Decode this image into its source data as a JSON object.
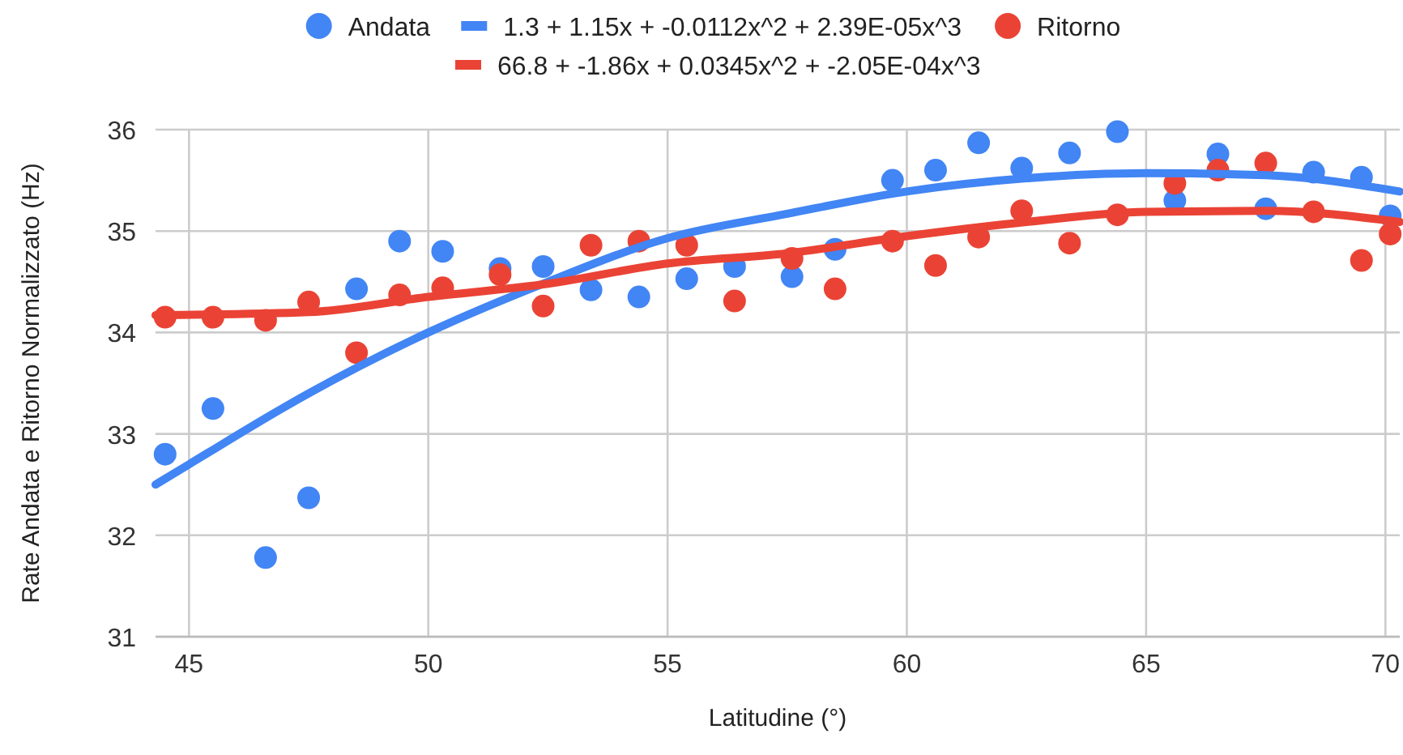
{
  "chart_data": {
    "type": "scatter",
    "xlabel": "Latitudine (°)",
    "ylabel": "Rate Andata e Ritorno Normalizzato (Hz)",
    "xlim": [
      44.3,
      70.3
    ],
    "ylim": [
      31,
      36
    ],
    "xticks": [
      45,
      50,
      55,
      60,
      65,
      70
    ],
    "yticks": [
      31,
      32,
      33,
      34,
      35,
      36
    ],
    "grid": true,
    "legend": "top",
    "marker": "circle",
    "x": [
      44.5,
      45.5,
      46.6,
      47.5,
      48.5,
      49.4,
      50.3,
      51.5,
      52.4,
      53.4,
      54.4,
      55.4,
      56.4,
      57.6,
      58.5,
      59.7,
      60.6,
      61.5,
      62.4,
      63.4,
      64.4,
      65.6,
      66.5,
      67.5,
      68.5,
      69.5,
      70.1
    ],
    "series": [
      {
        "name": "Andata",
        "color": "#4285f4",
        "values": [
          32.8,
          33.25,
          31.78,
          32.37,
          34.43,
          34.9,
          34.8,
          34.63,
          34.65,
          34.42,
          34.35,
          34.53,
          34.65,
          34.55,
          34.82,
          35.5,
          35.6,
          35.87,
          35.62,
          35.77,
          35.98,
          35.3,
          35.76,
          35.22,
          35.58,
          35.53,
          35.15
        ]
      },
      {
        "name": "1.3 + 1.15x + -0.0112x^2 + 2.39E-05x^3",
        "type": "line",
        "marker": "none",
        "color": "#4285f4",
        "x": [
          44.3,
          45,
          47.5,
          50,
          52.5,
          55,
          57.5,
          60,
          62.5,
          65,
          67.5,
          70.3
        ],
        "values": [
          32.5,
          32.7,
          33.4,
          34.0,
          34.5,
          34.93,
          35.17,
          35.39,
          35.52,
          35.57,
          35.55,
          35.39
        ]
      },
      {
        "name": "Ritorno",
        "color": "#ea4335",
        "values": [
          34.15,
          34.15,
          34.12,
          34.3,
          33.8,
          34.37,
          34.44,
          34.57,
          34.26,
          34.86,
          34.9,
          34.86,
          34.31,
          34.73,
          34.43,
          34.9,
          34.66,
          34.94,
          35.2,
          34.88,
          35.16,
          35.47,
          35.6,
          35.67,
          35.19,
          34.71,
          34.97
        ]
      },
      {
        "name": "66.8 + -1.86x + 0.0345x^2 + -2.05E-04x^3",
        "type": "line",
        "marker": "none",
        "color": "#ea4335",
        "x": [
          44.3,
          47.5,
          50,
          52.5,
          55,
          57.5,
          60,
          62.5,
          65,
          67.5,
          70.3
        ],
        "values": [
          34.17,
          34.2,
          34.35,
          34.48,
          34.68,
          34.78,
          34.95,
          35.09,
          35.19,
          35.2,
          35.09
        ]
      }
    ]
  }
}
